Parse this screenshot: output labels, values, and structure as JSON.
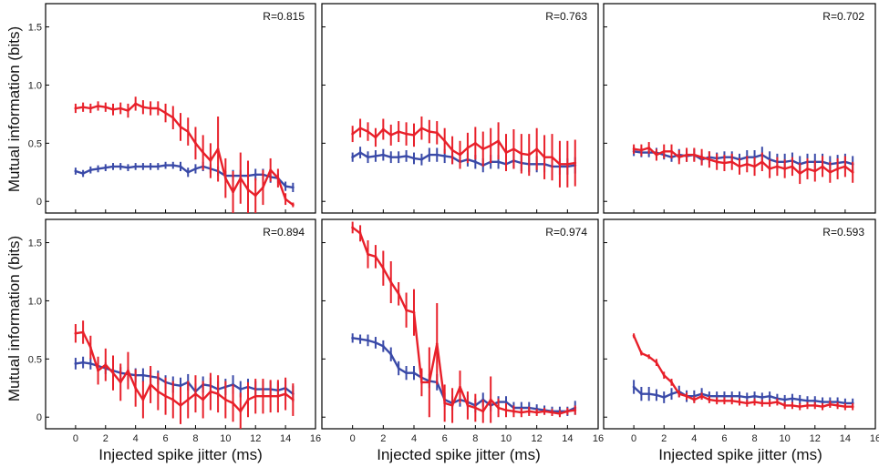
{
  "chart_data": {
    "type": "line",
    "grid": "2x3",
    "xlabel": "Injected spike jitter (ms)",
    "ylabel": "Mutual information (bits)",
    "xlim": [
      -2,
      16
    ],
    "ylim": [
      -0.1,
      1.7
    ],
    "xticks": [
      0,
      2,
      4,
      6,
      8,
      10,
      12,
      14,
      16
    ],
    "xtick_labels": [
      "0",
      "2",
      "4",
      "6",
      "8",
      "10",
      "12",
      "14",
      "16"
    ],
    "yticks": [
      0,
      0.5,
      1.0,
      1.5
    ],
    "ytick_labels": [
      "0",
      "0.5",
      "1.0",
      "1.5"
    ],
    "x": [
      0,
      0.5,
      1,
      1.5,
      2,
      2.5,
      3,
      3.5,
      4,
      4.5,
      5,
      5.5,
      6,
      6.5,
      7,
      7.5,
      8,
      8.5,
      9,
      9.5,
      10,
      10.5,
      11,
      11.5,
      12,
      12.5,
      13,
      13.5,
      14,
      14.5
    ],
    "series_colors": {
      "red": "#e8202a",
      "blue": "#3a4aa8"
    },
    "panels": [
      {
        "annotation": "R=0.815",
        "series": [
          {
            "name": "red",
            "values": [
              0.8,
              0.81,
              0.8,
              0.82,
              0.81,
              0.79,
              0.8,
              0.78,
              0.84,
              0.81,
              0.8,
              0.8,
              0.76,
              0.72,
              0.64,
              0.6,
              0.5,
              0.42,
              0.35,
              0.45,
              0.2,
              0.08,
              0.2,
              0.1,
              0.05,
              0.12,
              0.27,
              0.2,
              0.02,
              -0.03
            ],
            "errors": [
              0.04,
              0.04,
              0.04,
              0.04,
              0.04,
              0.05,
              0.05,
              0.06,
              0.06,
              0.06,
              0.06,
              0.06,
              0.08,
              0.1,
              0.12,
              0.12,
              0.14,
              0.15,
              0.15,
              0.28,
              0.17,
              0.18,
              0.22,
              0.25,
              0.15,
              0.15,
              0.1,
              0.08,
              0.05,
              0.02
            ]
          },
          {
            "name": "blue",
            "values": [
              0.26,
              0.24,
              0.27,
              0.28,
              0.29,
              0.3,
              0.3,
              0.29,
              0.3,
              0.3,
              0.3,
              0.3,
              0.31,
              0.31,
              0.3,
              0.25,
              0.28,
              0.3,
              0.28,
              0.26,
              0.22,
              0.22,
              0.22,
              0.22,
              0.23,
              0.23,
              0.21,
              0.2,
              0.13,
              0.12
            ],
            "errors": [
              0.03,
              0.03,
              0.03,
              0.03,
              0.03,
              0.03,
              0.03,
              0.03,
              0.03,
              0.03,
              0.03,
              0.03,
              0.03,
              0.03,
              0.04,
              0.04,
              0.04,
              0.04,
              0.04,
              0.04,
              0.04,
              0.05,
              0.05,
              0.05,
              0.05,
              0.05,
              0.05,
              0.04,
              0.04,
              0.04
            ]
          }
        ]
      },
      {
        "annotation": "R=0.763",
        "series": [
          {
            "name": "red",
            "values": [
              0.58,
              0.63,
              0.6,
              0.55,
              0.62,
              0.57,
              0.6,
              0.58,
              0.57,
              0.63,
              0.6,
              0.59,
              0.52,
              0.44,
              0.4,
              0.46,
              0.5,
              0.45,
              0.48,
              0.52,
              0.42,
              0.45,
              0.41,
              0.4,
              0.45,
              0.38,
              0.38,
              0.32,
              0.32,
              0.33
            ],
            "errors": [
              0.07,
              0.08,
              0.08,
              0.08,
              0.09,
              0.09,
              0.09,
              0.1,
              0.1,
              0.1,
              0.1,
              0.1,
              0.11,
              0.12,
              0.12,
              0.13,
              0.14,
              0.15,
              0.15,
              0.16,
              0.16,
              0.17,
              0.17,
              0.18,
              0.18,
              0.19,
              0.2,
              0.2,
              0.2,
              0.2
            ]
          },
          {
            "name": "blue",
            "values": [
              0.38,
              0.42,
              0.38,
              0.39,
              0.4,
              0.38,
              0.38,
              0.39,
              0.37,
              0.36,
              0.4,
              0.4,
              0.39,
              0.38,
              0.34,
              0.36,
              0.34,
              0.31,
              0.34,
              0.34,
              0.32,
              0.35,
              0.33,
              0.32,
              0.32,
              0.32,
              0.3,
              0.3,
              0.3,
              0.31
            ],
            "errors": [
              0.04,
              0.05,
              0.05,
              0.05,
              0.05,
              0.05,
              0.05,
              0.05,
              0.05,
              0.05,
              0.06,
              0.06,
              0.06,
              0.06,
              0.06,
              0.06,
              0.06,
              0.06,
              0.06,
              0.06,
              0.06,
              0.07,
              0.07,
              0.07,
              0.07,
              0.07,
              0.07,
              0.07,
              0.07,
              0.07
            ]
          }
        ]
      },
      {
        "annotation": "R=0.702",
        "series": [
          {
            "name": "red",
            "values": [
              0.45,
              0.44,
              0.46,
              0.4,
              0.43,
              0.43,
              0.38,
              0.4,
              0.4,
              0.38,
              0.36,
              0.34,
              0.33,
              0.34,
              0.3,
              0.32,
              0.3,
              0.34,
              0.28,
              0.3,
              0.28,
              0.3,
              0.24,
              0.28,
              0.26,
              0.3,
              0.25,
              0.28,
              0.3,
              0.25
            ],
            "errors": [
              0.04,
              0.05,
              0.05,
              0.05,
              0.06,
              0.06,
              0.06,
              0.06,
              0.06,
              0.07,
              0.07,
              0.07,
              0.07,
              0.07,
              0.07,
              0.07,
              0.08,
              0.08,
              0.08,
              0.08,
              0.08,
              0.08,
              0.09,
              0.09,
              0.09,
              0.09,
              0.09,
              0.09,
              0.09,
              0.09
            ]
          },
          {
            "name": "blue",
            "values": [
              0.43,
              0.42,
              0.42,
              0.42,
              0.4,
              0.38,
              0.4,
              0.39,
              0.4,
              0.36,
              0.38,
              0.37,
              0.38,
              0.38,
              0.36,
              0.38,
              0.38,
              0.4,
              0.36,
              0.34,
              0.34,
              0.35,
              0.32,
              0.34,
              0.34,
              0.34,
              0.32,
              0.33,
              0.34,
              0.32
            ],
            "errors": [
              0.04,
              0.04,
              0.04,
              0.04,
              0.04,
              0.04,
              0.05,
              0.05,
              0.05,
              0.05,
              0.05,
              0.05,
              0.05,
              0.05,
              0.05,
              0.06,
              0.06,
              0.07,
              0.07,
              0.07,
              0.07,
              0.07,
              0.07,
              0.07,
              0.07,
              0.07,
              0.07,
              0.07,
              0.07,
              0.07
            ]
          }
        ]
      },
      {
        "annotation": "R=0.894",
        "series": [
          {
            "name": "red",
            "values": [
              0.72,
              0.73,
              0.6,
              0.4,
              0.45,
              0.38,
              0.3,
              0.4,
              0.25,
              0.15,
              0.28,
              0.22,
              0.18,
              0.15,
              0.1,
              0.15,
              0.2,
              0.15,
              0.22,
              0.2,
              0.15,
              0.12,
              0.05,
              0.15,
              0.18,
              0.18,
              0.18,
              0.18,
              0.2,
              0.15
            ],
            "errors": [
              0.08,
              0.1,
              0.1,
              0.12,
              0.14,
              0.15,
              0.16,
              0.16,
              0.16,
              0.16,
              0.16,
              0.16,
              0.16,
              0.16,
              0.16,
              0.16,
              0.16,
              0.16,
              0.16,
              0.16,
              0.16,
              0.16,
              0.16,
              0.15,
              0.15,
              0.15,
              0.14,
              0.14,
              0.14,
              0.14
            ]
          },
          {
            "name": "blue",
            "values": [
              0.46,
              0.47,
              0.46,
              0.44,
              0.42,
              0.4,
              0.38,
              0.37,
              0.36,
              0.36,
              0.35,
              0.34,
              0.3,
              0.28,
              0.27,
              0.3,
              0.22,
              0.28,
              0.27,
              0.24,
              0.26,
              0.28,
              0.24,
              0.26,
              0.24,
              0.24,
              0.24,
              0.23,
              0.25,
              0.2
            ],
            "errors": [
              0.05,
              0.05,
              0.05,
              0.05,
              0.05,
              0.05,
              0.05,
              0.06,
              0.06,
              0.06,
              0.06,
              0.06,
              0.06,
              0.07,
              0.07,
              0.07,
              0.07,
              0.07,
              0.07,
              0.07,
              0.07,
              0.08,
              0.07,
              0.07,
              0.07,
              0.07,
              0.07,
              0.07,
              0.07,
              0.07
            ]
          }
        ]
      },
      {
        "annotation": "R=0.974",
        "series": [
          {
            "name": "red",
            "values": [
              1.63,
              1.58,
              1.4,
              1.38,
              1.28,
              1.16,
              1.06,
              0.92,
              0.9,
              0.3,
              0.3,
              0.63,
              0.12,
              0.1,
              0.26,
              0.1,
              0.08,
              0.05,
              0.15,
              0.08,
              0.06,
              0.05,
              0.04,
              0.05,
              0.04,
              0.05,
              0.04,
              0.03,
              0.05,
              0.06
            ],
            "errors": [
              0.05,
              0.07,
              0.12,
              0.1,
              0.15,
              0.18,
              0.1,
              0.15,
              0.2,
              0.12,
              0.3,
              0.35,
              0.16,
              0.15,
              0.14,
              0.12,
              0.12,
              0.1,
              0.2,
              0.08,
              0.06,
              0.05,
              0.04,
              0.04,
              0.03,
              0.03,
              0.03,
              0.03,
              0.03,
              0.04
            ]
          },
          {
            "name": "blue",
            "values": [
              0.68,
              0.67,
              0.66,
              0.64,
              0.61,
              0.54,
              0.42,
              0.38,
              0.38,
              0.34,
              0.31,
              0.3,
              0.15,
              0.12,
              0.15,
              0.13,
              0.1,
              0.15,
              0.1,
              0.13,
              0.13,
              0.08,
              0.08,
              0.08,
              0.07,
              0.06,
              0.05,
              0.05,
              0.05,
              0.08
            ],
            "errors": [
              0.04,
              0.04,
              0.05,
              0.05,
              0.05,
              0.06,
              0.06,
              0.06,
              0.06,
              0.06,
              0.06,
              0.07,
              0.06,
              0.06,
              0.06,
              0.06,
              0.06,
              0.06,
              0.05,
              0.05,
              0.05,
              0.05,
              0.05,
              0.05,
              0.04,
              0.04,
              0.04,
              0.04,
              0.04,
              0.06
            ]
          }
        ]
      },
      {
        "annotation": "R=0.593",
        "series": [
          {
            "name": "red",
            "values": [
              0.7,
              0.55,
              0.52,
              0.47,
              0.36,
              0.3,
              0.2,
              0.18,
              0.15,
              0.18,
              0.15,
              0.14,
              0.14,
              0.14,
              0.13,
              0.12,
              0.13,
              0.12,
              0.12,
              0.13,
              0.1,
              0.1,
              0.09,
              0.1,
              0.1,
              0.09,
              0.11,
              0.1,
              0.09,
              0.09
            ],
            "errors": [
              0.02,
              0.02,
              0.02,
              0.03,
              0.03,
              0.03,
              0.03,
              0.03,
              0.03,
              0.03,
              0.03,
              0.03,
              0.03,
              0.03,
              0.03,
              0.03,
              0.03,
              0.03,
              0.03,
              0.03,
              0.03,
              0.03,
              0.03,
              0.03,
              0.03,
              0.03,
              0.03,
              0.03,
              0.03,
              0.03
            ]
          },
          {
            "name": "blue",
            "values": [
              0.26,
              0.2,
              0.2,
              0.19,
              0.17,
              0.2,
              0.22,
              0.18,
              0.18,
              0.2,
              0.18,
              0.18,
              0.18,
              0.18,
              0.18,
              0.17,
              0.18,
              0.17,
              0.18,
              0.16,
              0.15,
              0.16,
              0.15,
              0.14,
              0.14,
              0.13,
              0.13,
              0.13,
              0.12,
              0.12
            ],
            "errors": [
              0.06,
              0.06,
              0.06,
              0.05,
              0.05,
              0.05,
              0.05,
              0.05,
              0.05,
              0.05,
              0.04,
              0.04,
              0.04,
              0.04,
              0.04,
              0.04,
              0.04,
              0.04,
              0.04,
              0.04,
              0.04,
              0.04,
              0.04,
              0.04,
              0.04,
              0.04,
              0.04,
              0.04,
              0.04,
              0.04
            ]
          }
        ]
      }
    ]
  }
}
